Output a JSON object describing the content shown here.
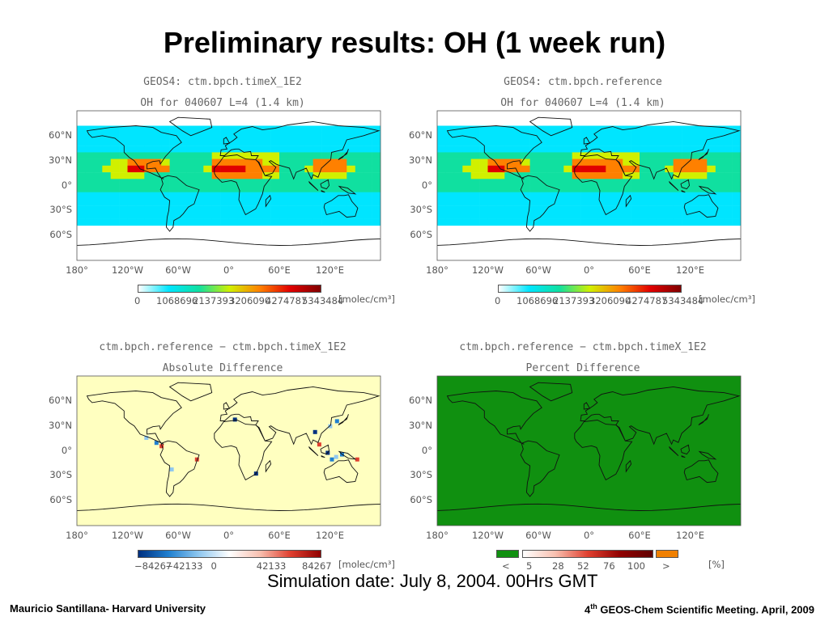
{
  "title": "Preliminary results: OH (1 week run)",
  "panels": [
    {
      "line1": "GEOS4: ctm.bpch.timeX_1E2",
      "line2": "OH for 040607 L=4 (1.4 km)",
      "colorbar_ticks": [
        "0",
        "1068696",
        "2137393",
        "3206090",
        "4274787",
        "5343484"
      ],
      "unit": "[molec/cm³]"
    },
    {
      "line1": "GEOS4: ctm.bpch.reference",
      "line2": "OH for 040607 L=4 (1.4 km)",
      "colorbar_ticks": [
        "0",
        "1068696",
        "2137393",
        "3206090",
        "4274787",
        "5343484"
      ],
      "unit": "[molec/cm³]"
    },
    {
      "line1": "ctm.bpch.reference − ctm.bpch.timeX_1E2",
      "line2": "Absolute Difference",
      "colorbar_ticks": [
        "−84267",
        "−42133",
        "0",
        "42133",
        "84267"
      ],
      "unit": "[molec/cm³]"
    },
    {
      "line1": "ctm.bpch.reference − ctm.bpch.timeX_1E2",
      "line2": "Percent Difference",
      "colorbar_ticks": [
        "<",
        "5",
        "28",
        "52",
        "76",
        "100",
        ">"
      ],
      "unit": "[%]"
    }
  ],
  "lat_labels": [
    "60°N",
    "30°N",
    "0°",
    "30°S",
    "60°S"
  ],
  "lon_labels": [
    "180°",
    "120°W",
    "60°W",
    "0°",
    "60°E",
    "120°E"
  ],
  "caption": "Simulation date: July 8, 2004. 00Hrs GMT",
  "footer_left": "Mauricio Santillana- Harvard University",
  "footer_right_pre": "4",
  "footer_right_sup": "th",
  "footer_right_post": " GEOS-Chem Scientific Meeting. April, 2009",
  "colors": {
    "oh_ramp": [
      "#ffffff",
      "#00e5ff",
      "#10e0a0",
      "#d0f000",
      "#ff8000",
      "#e00000",
      "#800000"
    ],
    "absdiff_background": "#ffffc0",
    "pctdiff_background": "#109010",
    "diverging_ramp": [
      "#003080",
      "#2080d0",
      "#90c8f0",
      "#ffffff",
      "#f8c0b0",
      "#e04030",
      "#900000"
    ]
  }
}
